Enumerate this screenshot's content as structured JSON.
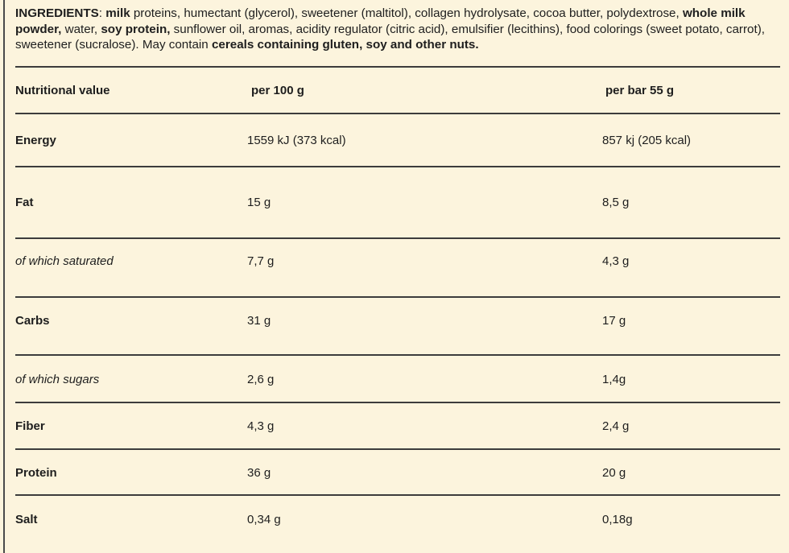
{
  "ingredients": [
    {
      "text": "INGREDIENTS",
      "bold": true
    },
    {
      "text": ": ",
      "bold": false
    },
    {
      "text": "milk",
      "bold": true
    },
    {
      "text": " proteins, humectant (glycerol), sweetener (maltitol), collagen hydrolysate, cocoa butter, polydextrose, ",
      "bold": false
    },
    {
      "text": "whole milk powder,",
      "bold": true
    },
    {
      "text": " water, ",
      "bold": false
    },
    {
      "text": "soy protein,",
      "bold": true
    },
    {
      "text": " sunflower oil, aromas, acidity regulator (citric acid), emulsifier (lecithins), food colorings (sweet potato, carrot), sweetener (sucralose). May contain ",
      "bold": false
    },
    {
      "text": "cereals containing gluten, soy and other nuts.",
      "bold": true
    }
  ],
  "table": {
    "headers": [
      "Nutritional value",
      "per 100 g",
      "per bar 55 g"
    ],
    "rows": [
      {
        "label": "Energy",
        "per100": "1559 kJ (373 kcal)",
        "perbar": "857 kj (205 kcal)",
        "italic": false
      },
      {
        "label": "Fat",
        "per100": "15 g",
        "perbar": "8,5 g",
        "italic": false
      },
      {
        "label": "of which saturated",
        "per100": "7,7 g",
        "perbar": "4,3 g",
        "italic": true
      },
      {
        "label": "Carbs",
        "per100": "31 g",
        "perbar": "17 g",
        "italic": false
      },
      {
        "label": "of which sugars",
        "per100": "2,6 g",
        "perbar": "1,4g",
        "italic": true
      },
      {
        "label": "Fiber",
        "per100": "4,3 g",
        "perbar": "2,4 g",
        "italic": false
      },
      {
        "label": "Protein",
        "per100": "36 g",
        "perbar": "20 g",
        "italic": false
      },
      {
        "label": "Salt",
        "per100": "0,34 g",
        "perbar": "0,18g",
        "italic": false
      }
    ]
  }
}
